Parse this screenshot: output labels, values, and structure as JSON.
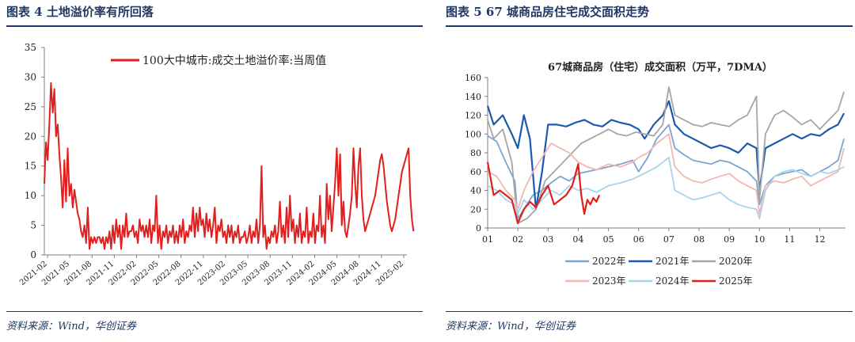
{
  "left": {
    "figure_title": "图表 4   土地溢价率有所回落",
    "source": "资料来源：Wind，华创证券"
  },
  "right": {
    "figure_title": "图表 5   67 城商品房住宅成交面积走势",
    "source": "资料来源：Wind，华创证券"
  },
  "colors": {
    "navy": "#1f3864",
    "red": "#e0201e"
  },
  "chart_data": [
    {
      "type": "line",
      "title": "",
      "xlabel": "",
      "ylabel": "",
      "ylim": [
        0,
        35
      ],
      "y_ticks": [
        0,
        5,
        10,
        15,
        20,
        25,
        30,
        35
      ],
      "x_ticks": [
        "2021-02",
        "2021-05",
        "2021-08",
        "2021-11",
        "2022-02",
        "2022-05",
        "2022-08",
        "2022-11",
        "2023-02",
        "2023-05",
        "2023-08",
        "2023-11",
        "2024-02",
        "2024-05",
        "2024-08",
        "2024-11",
        "2025-02"
      ],
      "x_range_weeks": [
        0,
        217
      ],
      "legend_position": "top-right",
      "series": [
        {
          "name": "100大中城市:成交土地溢价率:当周值",
          "color": "#e0201e",
          "values": [
            12,
            19,
            16,
            22,
            29,
            24,
            28,
            20,
            22,
            17,
            13,
            8,
            16,
            9,
            18,
            10,
            12,
            8,
            11,
            9,
            7,
            6,
            4,
            3,
            5,
            2,
            8,
            1,
            3,
            2,
            3,
            2,
            3,
            3,
            2,
            3,
            1,
            3,
            2,
            4,
            1,
            5,
            2,
            6,
            3,
            5,
            1,
            5,
            3,
            7,
            3,
            4,
            4,
            5,
            3,
            4,
            2,
            6,
            4,
            5,
            3,
            5,
            3,
            6,
            2,
            5,
            4,
            10,
            2,
            5,
            1,
            4,
            3,
            5,
            2,
            4,
            3,
            5,
            2,
            4,
            2,
            5,
            3,
            6,
            2,
            4,
            3,
            5,
            4,
            8,
            3,
            7,
            4,
            8,
            5,
            6,
            3,
            7,
            4,
            6,
            3,
            5,
            8,
            2,
            5,
            4,
            6,
            3,
            4,
            2,
            5,
            3,
            5,
            2,
            4,
            3,
            5,
            2,
            3,
            3,
            4,
            2,
            3,
            5,
            2,
            4,
            3,
            6,
            2,
            5,
            15,
            3,
            5,
            1,
            3,
            2,
            4,
            3,
            5,
            2,
            4,
            9,
            3,
            5,
            2,
            8,
            3,
            10,
            4,
            6,
            2,
            5,
            3,
            7,
            2,
            4,
            3,
            8,
            2,
            4,
            3,
            7,
            2,
            5,
            4,
            10,
            3,
            5,
            2,
            12,
            6,
            10,
            4,
            8,
            12,
            18,
            10,
            17,
            5,
            9,
            4,
            3,
            5,
            7,
            10,
            18,
            12,
            8,
            15,
            18,
            10,
            6,
            4,
            5,
            6,
            7,
            8,
            9,
            10,
            12,
            14,
            16,
            17,
            15,
            12,
            9,
            7,
            5,
            4,
            5,
            6,
            8,
            10,
            12,
            14,
            15,
            16,
            17,
            18,
            10,
            6,
            4
          ]
        }
      ]
    },
    {
      "type": "line",
      "title": "67城商品房（住宅）成交面积（万平，7DMA）",
      "xlabel": "",
      "ylabel": "",
      "ylim": [
        0,
        160
      ],
      "y_ticks": [
        0,
        20,
        40,
        60,
        80,
        100,
        120,
        140,
        160
      ],
      "x_ticks": [
        "01",
        "02",
        "03",
        "04",
        "05",
        "06",
        "07",
        "08",
        "09",
        "10",
        "11",
        "12"
      ],
      "legend_position": "bottom",
      "series": [
        {
          "name": "2022年",
          "color": "#7aa5d3",
          "x": [
            1,
            1.3,
            1.6,
            1.9,
            2.0,
            2.2,
            2.5,
            2.8,
            3.1,
            3.4,
            3.7,
            4.0,
            4.3,
            4.6,
            5.0,
            5.4,
            5.8,
            6.0,
            6.3,
            6.6,
            7.0,
            7.2,
            7.5,
            7.8,
            8.1,
            8.4,
            8.7,
            9.0,
            9.3,
            9.6,
            9.9,
            10.0,
            10.2,
            10.5,
            10.8,
            11.1,
            11.4,
            11.7,
            12.0,
            12.3,
            12.6,
            12.8
          ],
          "y": [
            98,
            92,
            70,
            50,
            10,
            20,
            35,
            40,
            48,
            55,
            50,
            58,
            60,
            62,
            65,
            68,
            72,
            60,
            75,
            95,
            110,
            85,
            78,
            72,
            70,
            68,
            72,
            70,
            65,
            60,
            50,
            25,
            45,
            55,
            58,
            60,
            62,
            55,
            60,
            65,
            72,
            95
          ]
        },
        {
          "name": "2021年",
          "color": "#1a5ab0",
          "x": [
            1,
            1.2,
            1.5,
            1.8,
            2.0,
            2.2,
            2.4,
            2.6,
            2.8,
            3.0,
            3.3,
            3.6,
            3.9,
            4.2,
            4.5,
            4.8,
            5.1,
            5.4,
            5.7,
            6.0,
            6.2,
            6.5,
            6.8,
            7.0,
            7.2,
            7.5,
            7.8,
            8.1,
            8.4,
            8.7,
            9.0,
            9.3,
            9.6,
            9.9,
            10.0,
            10.2,
            10.5,
            10.8,
            11.1,
            11.4,
            11.7,
            12.0,
            12.3,
            12.6,
            12.8
          ],
          "y": [
            130,
            110,
            120,
            100,
            85,
            120,
            95,
            20,
            60,
            110,
            110,
            108,
            112,
            115,
            110,
            108,
            115,
            112,
            110,
            105,
            95,
            110,
            120,
            135,
            110,
            100,
            95,
            90,
            85,
            88,
            85,
            80,
            90,
            85,
            40,
            85,
            90,
            95,
            100,
            95,
            100,
            98,
            105,
            110,
            122
          ]
        },
        {
          "name": "2020年",
          "color": "#a6a6a6",
          "x": [
            1,
            1.2,
            1.5,
            1.8,
            2.0,
            2.3,
            2.6,
            2.9,
            3.2,
            3.5,
            3.8,
            4.1,
            4.4,
            4.7,
            5.0,
            5.3,
            5.6,
            5.9,
            6.2,
            6.5,
            6.8,
            7.0,
            7.2,
            7.5,
            7.8,
            8.1,
            8.4,
            8.7,
            9.0,
            9.3,
            9.6,
            9.9,
            10.0,
            10.2,
            10.5,
            10.8,
            11.1,
            11.4,
            11.7,
            12.0,
            12.3,
            12.6,
            12.8
          ],
          "y": [
            115,
            95,
            105,
            70,
            5,
            10,
            20,
            50,
            60,
            70,
            80,
            90,
            95,
            100,
            105,
            100,
            98,
            102,
            100,
            98,
            110,
            150,
            120,
            115,
            110,
            108,
            112,
            110,
            108,
            115,
            120,
            140,
            30,
            100,
            120,
            125,
            118,
            110,
            115,
            105,
            115,
            125,
            145
          ]
        },
        {
          "name": "2023年",
          "color": "#f4b6b1",
          "x": [
            1,
            1.3,
            1.6,
            1.9,
            2.0,
            2.2,
            2.5,
            2.8,
            3.1,
            3.4,
            3.7,
            4.0,
            4.3,
            4.6,
            5.0,
            5.4,
            5.8,
            6.0,
            6.3,
            6.6,
            7.0,
            7.2,
            7.5,
            7.8,
            8.1,
            8.4,
            8.7,
            9.0,
            9.3,
            9.6,
            9.9,
            10.0,
            10.2,
            10.5,
            10.8,
            11.1,
            11.4,
            11.7,
            12.0,
            12.3,
            12.6,
            12.8
          ],
          "y": [
            60,
            55,
            40,
            30,
            20,
            40,
            60,
            75,
            90,
            85,
            80,
            70,
            65,
            62,
            68,
            65,
            70,
            75,
            80,
            90,
            100,
            65,
            55,
            50,
            48,
            52,
            55,
            58,
            50,
            45,
            40,
            15,
            45,
            50,
            48,
            52,
            55,
            45,
            50,
            55,
            60,
            85
          ]
        },
        {
          "name": "2024年",
          "color": "#a9d3ea",
          "x": [
            1,
            1.3,
            1.6,
            1.9,
            2.0,
            2.2,
            2.5,
            2.8,
            3.1,
            3.4,
            3.7,
            4.0,
            4.3,
            4.6,
            5.0,
            5.4,
            5.8,
            6.0,
            6.3,
            6.6,
            7.0,
            7.2,
            7.5,
            7.8,
            8.1,
            8.4,
            8.7,
            9.0,
            9.3,
            9.6,
            9.9,
            10.0,
            10.2,
            10.5,
            10.8,
            11.1,
            11.4,
            11.7,
            12.0,
            12.3,
            12.6,
            12.8
          ],
          "y": [
            45,
            40,
            30,
            25,
            15,
            30,
            20,
            30,
            40,
            35,
            45,
            40,
            42,
            38,
            45,
            48,
            52,
            55,
            60,
            65,
            75,
            40,
            35,
            30,
            32,
            35,
            38,
            30,
            25,
            22,
            20,
            10,
            40,
            55,
            60,
            62,
            58,
            55,
            60,
            58,
            62,
            65
          ]
        },
        {
          "name": "2025年",
          "color": "#e0201e",
          "x": [
            1,
            1.2,
            1.4,
            1.6,
            1.8,
            2.0,
            2.2,
            2.4,
            2.6,
            2.8,
            3.0,
            3.2,
            3.4,
            3.6,
            3.8,
            4.0,
            4.1,
            4.2,
            4.3,
            4.4,
            4.5,
            4.6,
            4.7
          ],
          "y": [
            70,
            35,
            40,
            35,
            30,
            5,
            20,
            28,
            22,
            35,
            45,
            25,
            30,
            35,
            45,
            68,
            35,
            15,
            30,
            25,
            32,
            28,
            35
          ]
        }
      ]
    }
  ]
}
